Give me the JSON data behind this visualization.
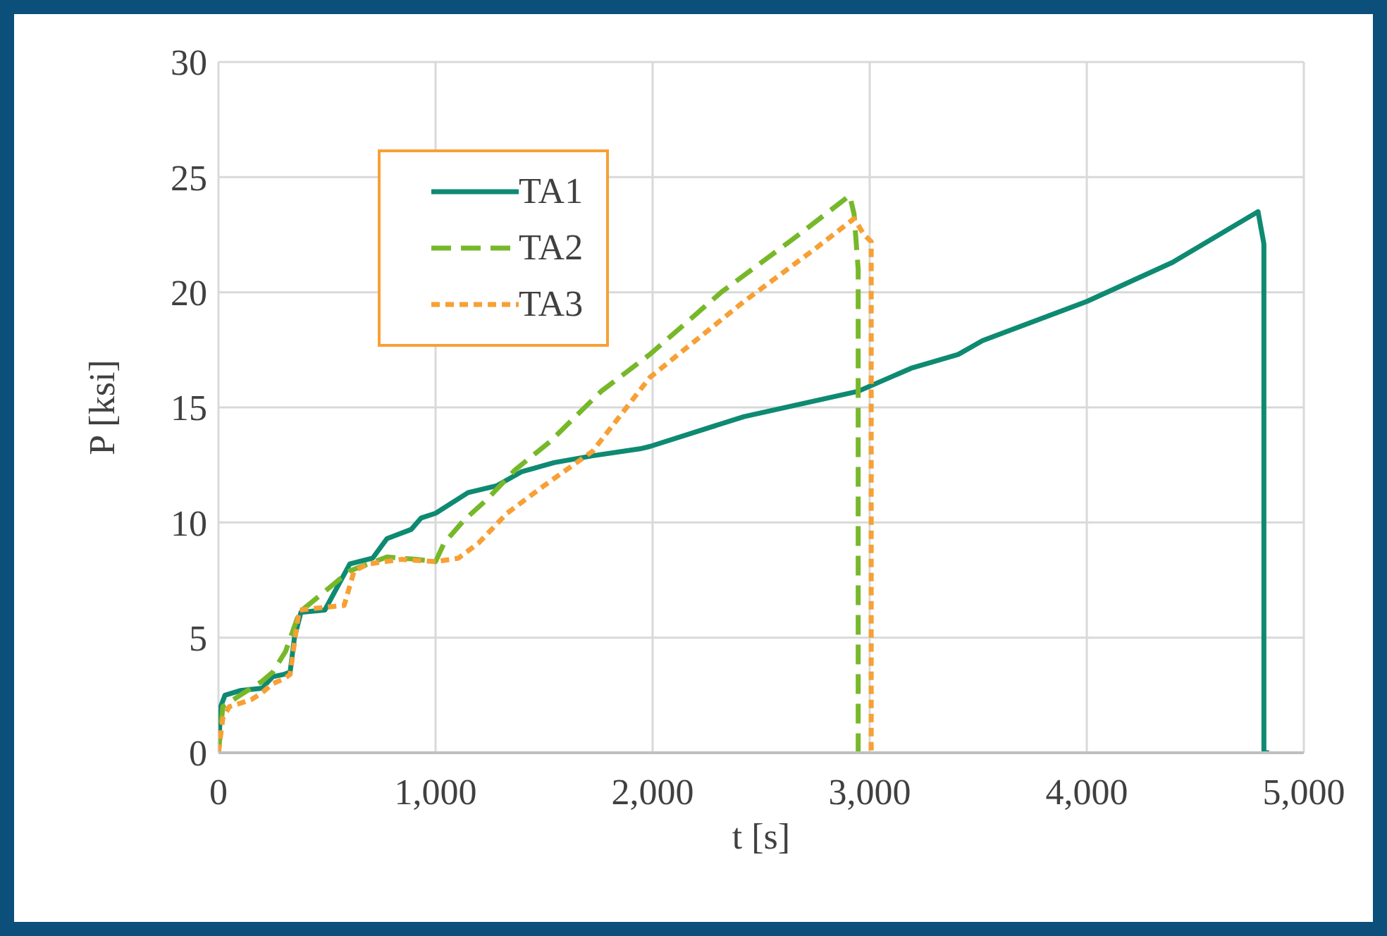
{
  "chart_data": {
    "type": "line",
    "xlabel": "t [s]",
    "ylabel": "P [ksi]",
    "xlim": [
      0,
      5000
    ],
    "ylim": [
      0,
      30
    ],
    "xticks": [
      0,
      {
        "value": 1000,
        "label": "1,000"
      },
      {
        "value": 2000,
        "label": "2,000"
      },
      {
        "value": 3000,
        "label": "3,000"
      },
      {
        "value": 4000,
        "label": "4,000"
      },
      {
        "value": 5000,
        "label": "5,000"
      }
    ],
    "yticks": [
      0,
      5,
      10,
      15,
      20,
      25,
      30
    ],
    "grid": true,
    "legend": "top left",
    "marker": "none",
    "series": [
      {
        "name": "TA1",
        "color": "#0e8a72",
        "line_style": "solid",
        "x": [
          0,
          10,
          30,
          100,
          200,
          250,
          300,
          330,
          350,
          380,
          490,
          605,
          710,
          776,
          888,
          934,
          1000,
          1150,
          1283,
          1395,
          1546,
          1724,
          1941,
          1987,
          2421,
          2947,
          3191,
          3408,
          3520,
          4000,
          4395,
          4789,
          4816,
          4816,
          4840
        ],
        "values": [
          0,
          2.0,
          2.5,
          2.7,
          2.8,
          3.3,
          3.4,
          3.5,
          5.0,
          6.1,
          6.2,
          8.2,
          8.45,
          9.3,
          9.7,
          10.2,
          10.4,
          11.3,
          11.6,
          12.2,
          12.6,
          12.9,
          13.2,
          13.3,
          14.6,
          15.7,
          16.7,
          17.3,
          17.9,
          19.6,
          21.3,
          23.5,
          22.1,
          0,
          0
        ]
      },
      {
        "name": "TA2",
        "color": "#77b82a",
        "line_style": "dashed",
        "x": [
          0,
          20,
          100,
          200,
          250,
          309,
          373,
          605,
          776,
          910,
          1000,
          1039,
          1131,
          1237,
          1368,
          1526,
          1763,
          1987,
          2316,
          2645,
          2908,
          2928,
          2947,
          2947
        ],
        "values": [
          0,
          2.0,
          2.5,
          3.1,
          3.5,
          4.4,
          6.1,
          7.9,
          8.5,
          8.4,
          8.3,
          9.1,
          10.1,
          11.0,
          12.3,
          13.5,
          15.7,
          17.3,
          20.0,
          22.3,
          24.2,
          23.4,
          21.0,
          0
        ]
      },
      {
        "name": "TA3",
        "color": "#f7a035",
        "line_style": "dotted",
        "x": [
          0,
          20,
          50,
          150,
          200,
          250,
          300,
          330,
          362,
          373,
          579,
          625,
          691,
          842,
          1000,
          1105,
          1197,
          1329,
          1500,
          1724,
          1987,
          2421,
          2750,
          2928,
          2974,
          3007,
          3007
        ],
        "values": [
          0,
          1.5,
          2.0,
          2.3,
          2.6,
          3.0,
          3.2,
          3.4,
          5.6,
          6.2,
          6.4,
          7.9,
          8.2,
          8.4,
          8.3,
          8.45,
          9.1,
          10.4,
          11.6,
          13.1,
          16.3,
          19.6,
          21.9,
          23.2,
          22.5,
          22.2,
          0
        ]
      }
    ]
  }
}
